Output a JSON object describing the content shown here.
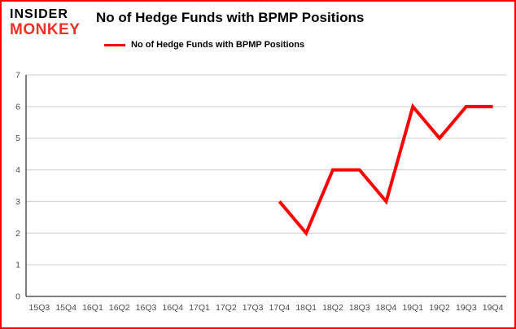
{
  "brand": {
    "line1": "INSIDER",
    "line2": "MONKEY"
  },
  "header": {
    "title": "No of Hedge Funds with BPMP Positions"
  },
  "legend": {
    "label": "No of Hedge Funds with BPMP Positions",
    "color": "#ff0000"
  },
  "colors": {
    "frame_border": "#ff0000",
    "grid": "#cdcdcd",
    "axis": "#000000",
    "tick_text": "#4a4a4a",
    "series": "#ff0000"
  },
  "chart_data": {
    "type": "line",
    "title": "No of Hedge Funds with BPMP Positions",
    "categories": [
      "15Q3",
      "15Q4",
      "16Q1",
      "16Q2",
      "16Q3",
      "16Q4",
      "17Q1",
      "17Q2",
      "17Q3",
      "17Q4",
      "18Q1",
      "18Q2",
      "18Q3",
      "18Q4",
      "19Q1",
      "19Q2",
      "19Q3",
      "19Q4"
    ],
    "series": [
      {
        "name": "No of Hedge Funds with BPMP Positions",
        "color": "#ff0000",
        "values": [
          null,
          null,
          null,
          null,
          null,
          null,
          null,
          null,
          null,
          3,
          2,
          4,
          4,
          3,
          6,
          5,
          6,
          6
        ]
      }
    ],
    "xlabel": "",
    "ylabel": "",
    "ylim": [
      0,
      7
    ],
    "yticks": [
      0,
      1,
      2,
      3,
      4,
      5,
      6,
      7
    ],
    "grid": true,
    "legend_position": "top"
  }
}
